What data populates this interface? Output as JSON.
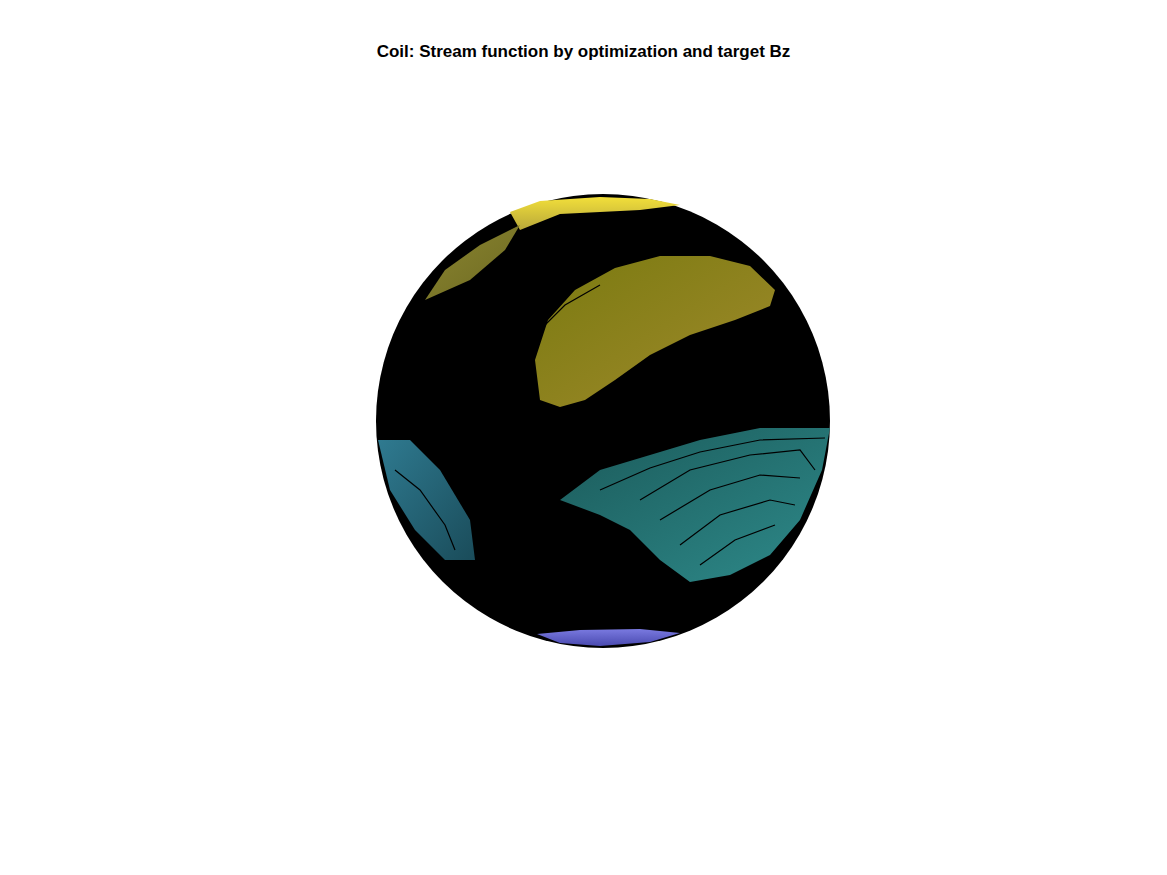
{
  "chart_data": {
    "type": "surface",
    "title": "Coil: Stream function by optimization and target Bz",
    "tick_labels": false
  }
}
